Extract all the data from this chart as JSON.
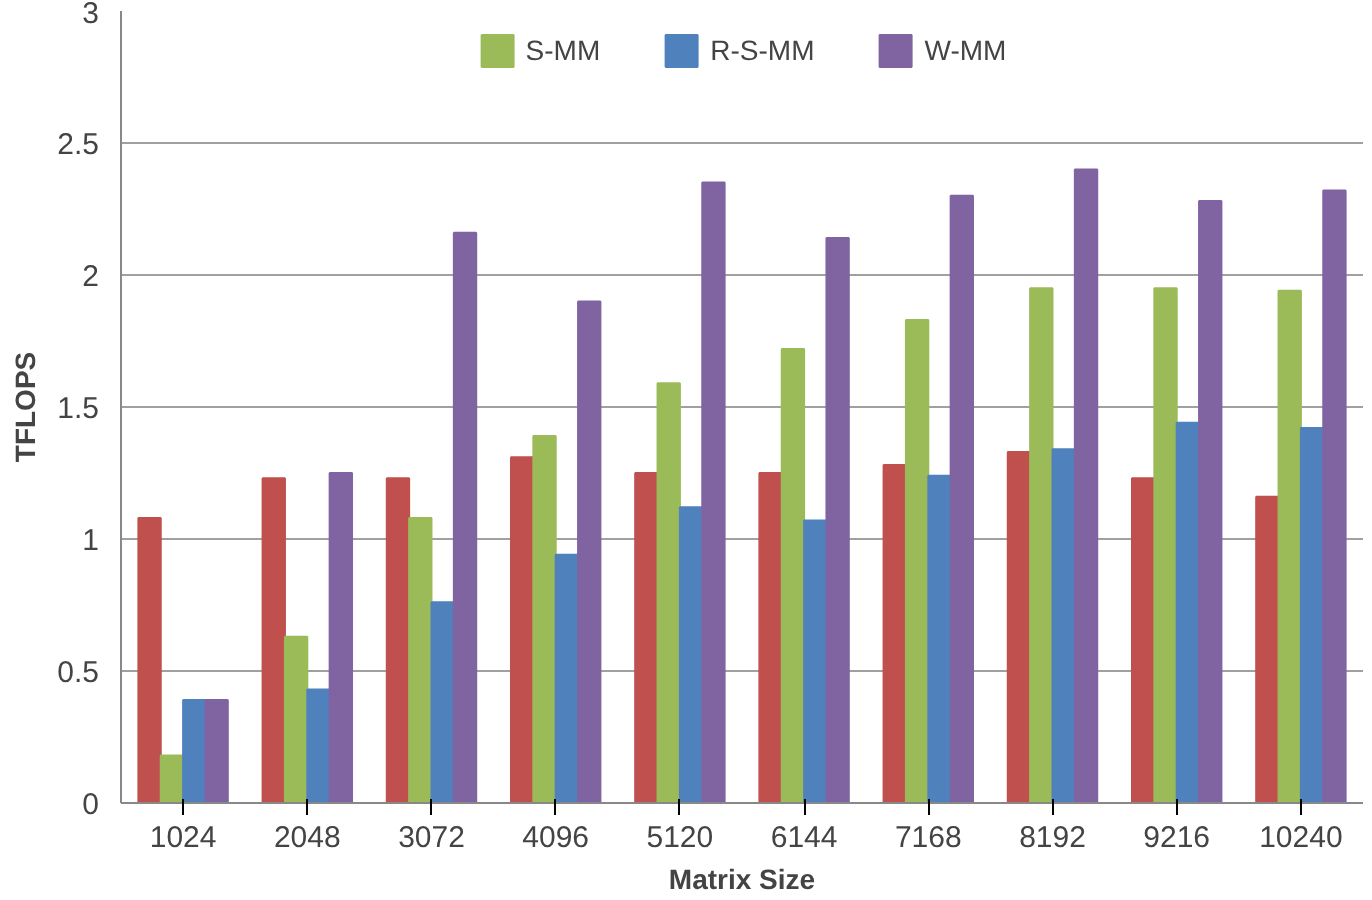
{
  "chart_data": {
    "type": "bar",
    "xlabel": "Matrix Size",
    "ylabel": "TFLOPS",
    "categories": [
      "1024",
      "2048",
      "3072",
      "4096",
      "5120",
      "6144",
      "7168",
      "8192",
      "9216",
      "10240"
    ],
    "series": [
      {
        "color": "#c0504d",
        "values": [
          1.08,
          1.23,
          1.23,
          1.31,
          1.25,
          1.25,
          1.28,
          1.33,
          1.23,
          1.16
        ]
      },
      {
        "name": "S-MM",
        "color": "#9bbb59",
        "values": [
          0.18,
          0.63,
          1.08,
          1.39,
          1.59,
          1.72,
          1.83,
          1.95,
          1.95,
          1.94
        ]
      },
      {
        "name": "R-S-MM",
        "color": "#4f81bd",
        "values": [
          0.39,
          0.43,
          0.76,
          0.94,
          1.12,
          1.07,
          1.24,
          1.34,
          1.44,
          1.42
        ]
      },
      {
        "name": "W-MM",
        "color": "#8064a2",
        "values": [
          0.39,
          1.25,
          2.16,
          1.9,
          2.35,
          2.14,
          2.3,
          2.4,
          2.28,
          2.32
        ]
      }
    ],
    "ylim": [
      0,
      3
    ],
    "yticks": [
      0,
      0.5,
      1,
      1.5,
      2,
      2.5,
      3
    ],
    "grid": "y",
    "legend": "top"
  }
}
